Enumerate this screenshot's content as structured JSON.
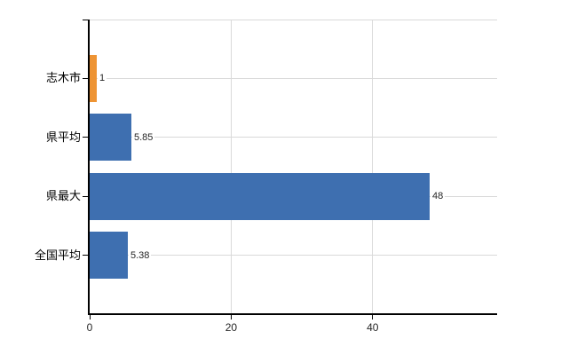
{
  "chart_data": {
    "type": "bar",
    "orientation": "horizontal",
    "title": "",
    "xlabel": "",
    "ylabel": "",
    "categories": [
      "志木市",
      "県平均",
      "県最大",
      "全国平均"
    ],
    "values": [
      1,
      5.85,
      48,
      5.38
    ],
    "value_labels": [
      "1",
      "5.85",
      "48",
      "5.38"
    ],
    "bar_colors": [
      "#ee9434",
      "#3e6fb0",
      "#3e6fb0",
      "#3e6fb0"
    ],
    "xlim": [
      0,
      57.6
    ],
    "x_ticks": [
      0,
      20,
      40
    ],
    "x_tick_labels": [
      "0",
      "20",
      "40"
    ],
    "grid": true,
    "legend": "none",
    "colors": {
      "gridline": "#d9d9d9",
      "axis": "#000000",
      "category_label": "#000000",
      "value_label": "#262626",
      "background": "#ffffff"
    }
  }
}
